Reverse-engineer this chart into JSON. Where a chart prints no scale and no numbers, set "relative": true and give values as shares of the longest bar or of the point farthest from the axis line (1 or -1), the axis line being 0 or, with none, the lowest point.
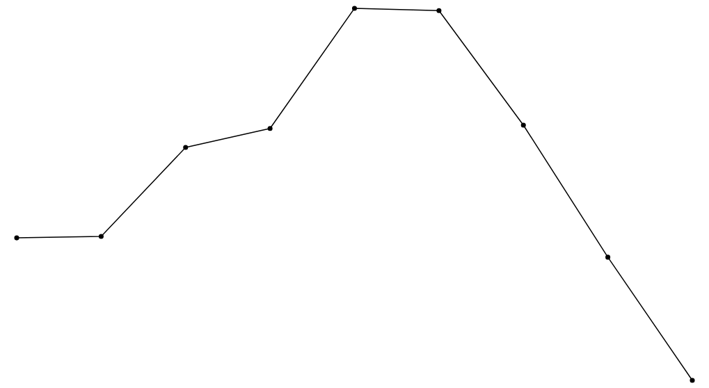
{
  "chart_data": {
    "type": "line",
    "relative": true,
    "categories": [
      null,
      null,
      null,
      null,
      null,
      null,
      null,
      null,
      null
    ],
    "values": [
      0.383,
      0.387,
      0.626,
      0.677,
      1.0,
      0.994,
      0.686,
      0.331,
      0
    ],
    "color": "#000000",
    "marker": "circle",
    "line_style": "solid"
  }
}
